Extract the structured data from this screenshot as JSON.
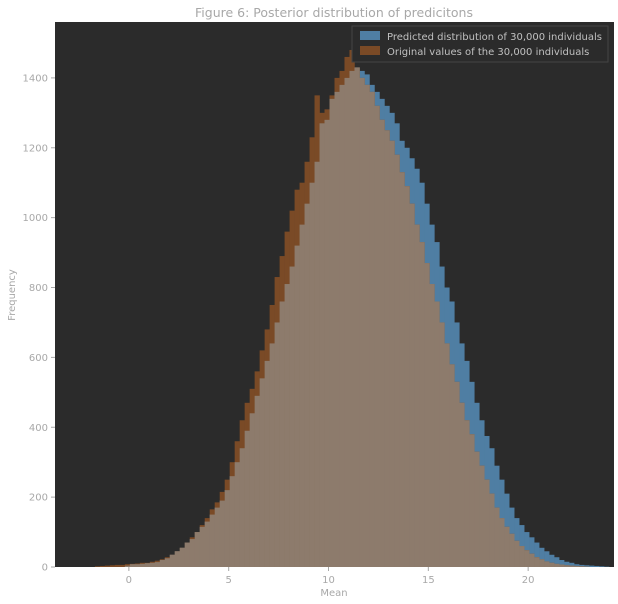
{
  "chart_data": {
    "type": "bar",
    "title": "Figure 6: Posterior distribution of predicitons",
    "xlabel": "Mean",
    "ylabel": "Frequency",
    "xlim": [
      -3.7,
      24.3
    ],
    "ylim": [
      0,
      1560
    ],
    "xticks": [
      0,
      5,
      10,
      15,
      20
    ],
    "xtick_labels": [
      "0",
      "5",
      "10",
      "15",
      "20"
    ],
    "yticks": [
      0,
      200,
      400,
      600,
      800,
      1000,
      1200,
      1400
    ],
    "ytick_labels": [
      "0",
      "200",
      "400",
      "600",
      "800",
      "1000",
      "1200",
      "1400"
    ],
    "grid": false,
    "legend_position": "top-right",
    "colors": {
      "plot_background": "#2b2b2b",
      "axes_text": "#a8a8a8",
      "predicted": "#4f7ea3",
      "original": "#7a4a26",
      "overlap": "#8d7b6c"
    },
    "series": [
      {
        "name": "Predicted distribution of 30,000 individuals",
        "color": "#4f7ea3",
        "bin_start": -2.2,
        "bin_width": 0.25,
        "values": [
          0,
          0,
          0,
          0,
          0,
          0,
          0,
          0,
          4,
          8,
          8,
          9,
          11,
          12,
          14,
          20,
          25,
          35,
          45,
          55,
          70,
          80,
          100,
          115,
          130,
          150,
          170,
          190,
          220,
          260,
          300,
          340,
          390,
          440,
          490,
          540,
          590,
          640,
          700,
          760,
          810,
          860,
          920,
          980,
          1040,
          1100,
          1160,
          1270,
          1280,
          1340,
          1360,
          1380,
          1400,
          1420,
          1430,
          1420,
          1410,
          1380,
          1360,
          1340,
          1320,
          1300,
          1270,
          1220,
          1200,
          1170,
          1140,
          1100,
          1040,
          980,
          930,
          860,
          800,
          760,
          700,
          640,
          590,
          530,
          470,
          420,
          375,
          340,
          290,
          250,
          210,
          170,
          140,
          120,
          100,
          85,
          70,
          55,
          45,
          35,
          28,
          20,
          15,
          12,
          8,
          6,
          5,
          4,
          3,
          2,
          1
        ]
      },
      {
        "name": "Original values of the 30,000 individuals",
        "color": "#7a4a26",
        "bin_start": -2.2,
        "bin_width": 0.25,
        "values": [
          0,
          0,
          2,
          3,
          4,
          5,
          6,
          6,
          8,
          9,
          10,
          12,
          12,
          15,
          18,
          22,
          28,
          35,
          45,
          55,
          70,
          85,
          100,
          120,
          140,
          165,
          185,
          215,
          250,
          300,
          360,
          420,
          470,
          510,
          560,
          620,
          680,
          750,
          830,
          890,
          960,
          1020,
          1080,
          1100,
          1160,
          1230,
          1350,
          1300,
          1310,
          1350,
          1400,
          1420,
          1460,
          1480,
          1430,
          1400,
          1380,
          1360,
          1320,
          1280,
          1250,
          1220,
          1180,
          1130,
          1090,
          1040,
          980,
          930,
          870,
          810,
          760,
          700,
          640,
          580,
          530,
          470,
          420,
          380,
          330,
          290,
          250,
          210,
          170,
          140,
          115,
          95,
          75,
          60,
          48,
          38,
          28,
          22,
          16,
          12,
          9,
          7,
          5,
          4,
          3,
          2,
          1,
          0,
          0
        ]
      }
    ]
  }
}
